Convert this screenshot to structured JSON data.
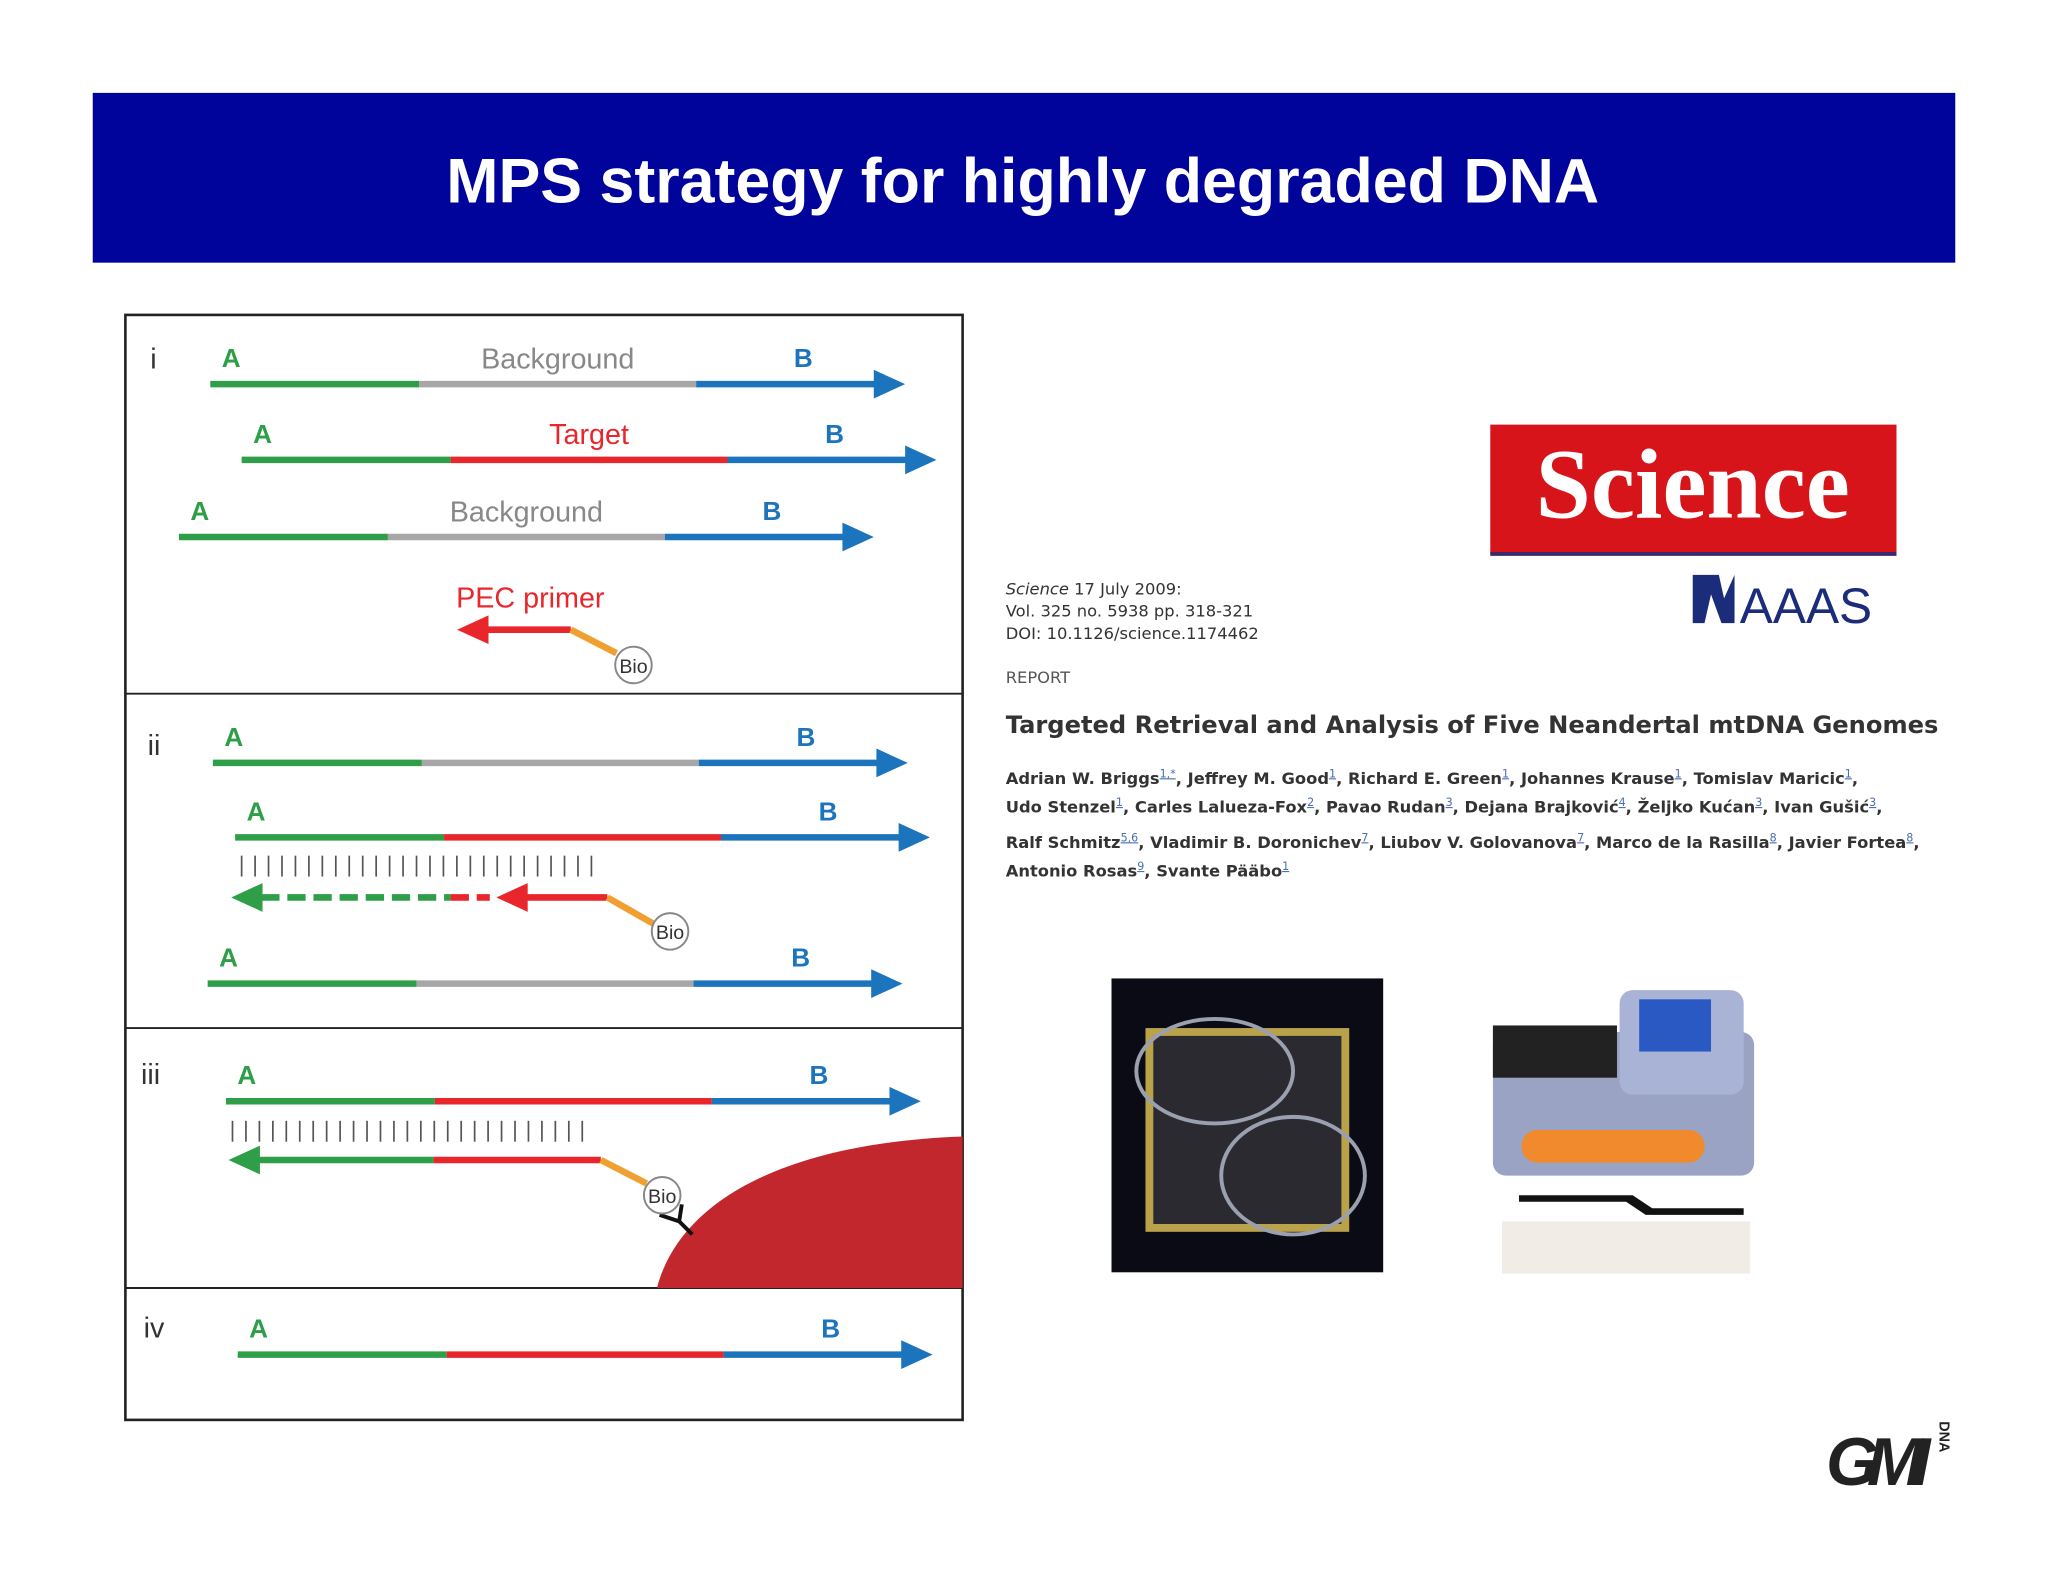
{
  "header": {
    "title": "MPS strategy for highly degraded DNA"
  },
  "diagram": {
    "panels": [
      {
        "label": "i",
        "rows": [
          {
            "left": "A",
            "middle": "Background",
            "right": "B"
          },
          {
            "left": "A",
            "middle": "Target",
            "right": "B"
          },
          {
            "left": "A",
            "middle": "Background",
            "right": "B"
          }
        ],
        "primer": "PEC primer",
        "bio": "Bio"
      },
      {
        "label": "ii",
        "rows": [
          {
            "left": "A",
            "right": "B"
          },
          {
            "left": "A",
            "right": "B"
          },
          {
            "left": "A",
            "right": "B"
          }
        ],
        "bio": "Bio"
      },
      {
        "label": "iii",
        "rows": [
          {
            "left": "A",
            "right": "B"
          }
        ],
        "bio": "Bio"
      },
      {
        "label": "iv",
        "rows": [
          {
            "left": "A",
            "right": "B"
          }
        ]
      }
    ]
  },
  "logo": {
    "science": "Science",
    "aaas": "AAAS"
  },
  "citation": {
    "journal": "Science",
    "date": "17 July 2009:",
    "volume": "Vol. 325 no. 5938 pp. 318-321",
    "doi": "DOI: 10.1126/science.1174462",
    "section": "REPORT",
    "title": "Targeted Retrieval and Analysis of Five Neandertal mtDNA Genomes",
    "authors": [
      [
        {
          "name": "Adrian W. Briggs",
          "sup": "1,*",
          "after": ","
        },
        {
          "name": "Jeffrey M. Good",
          "sup": "1",
          "after": ","
        },
        {
          "name": "Richard E. Green",
          "sup": "1",
          "after": ","
        },
        {
          "name": "Johannes Krause",
          "sup": "1",
          "after": ","
        },
        {
          "name": "Tomislav Maricic",
          "sup": "1",
          "after": ","
        }
      ],
      [
        {
          "name": "Udo Stenzel",
          "sup": "1",
          "after": ","
        },
        {
          "name": "Carles Lalueza-Fox",
          "sup": "2",
          "after": ","
        },
        {
          "name": "Pavao Rudan",
          "sup": "3",
          "after": ","
        },
        {
          "name": "Dejana Brajković",
          "sup": "4",
          "after": ","
        },
        {
          "name": "Željko Kućan",
          "sup": "3",
          "after": ","
        },
        {
          "name": "Ivan Gušić",
          "sup": "3",
          "after": ","
        }
      ],
      [
        {
          "name": "Ralf Schmitz",
          "sup": "5,6",
          "after": ","
        },
        {
          "name": "Vladimir B. Doronichev",
          "sup": "7",
          "after": ","
        },
        {
          "name": "Liubov V. Golovanova",
          "sup": "7",
          "after": ","
        },
        {
          "name": "Marco de la Rasilla",
          "sup": "8",
          "after": ","
        },
        {
          "name": "Javier Fortea",
          "sup": "8",
          "after": ","
        }
      ],
      [
        {
          "name": "Antonio Rosas",
          "sup": "9",
          "after": ","
        },
        {
          "name": "Svante Pääbo",
          "sup": "1"
        }
      ]
    ]
  },
  "footer_logo": {
    "mark": "GMI",
    "side": "DNA"
  }
}
